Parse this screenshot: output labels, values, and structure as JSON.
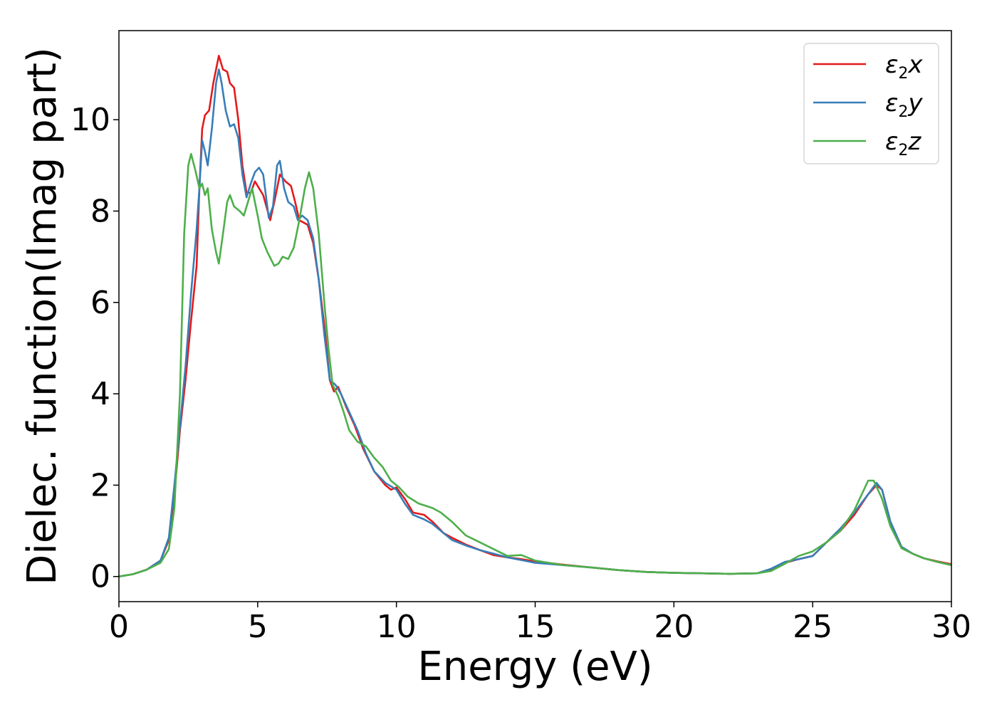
{
  "chart_data": {
    "type": "line",
    "xlabel": "Energy (eV)",
    "ylabel": "Dielec. function(Imag part)",
    "xlim": [
      0,
      30
    ],
    "ylim": [
      -0.55,
      11.95
    ],
    "x_ticks": [
      0,
      5,
      10,
      15,
      20,
      25,
      30
    ],
    "y_ticks": [
      0,
      2,
      4,
      6,
      8,
      10
    ],
    "grid": false,
    "legend_position": "top-right",
    "series": [
      {
        "name": "ε2x",
        "legend_base": "ε",
        "legend_sub": "2",
        "legend_var": "x",
        "color": "#e41a1c",
        "points": [
          [
            0,
            0
          ],
          [
            0.5,
            0.05
          ],
          [
            1,
            0.15
          ],
          [
            1.5,
            0.35
          ],
          [
            1.8,
            0.8
          ],
          [
            2,
            1.8
          ],
          [
            2.2,
            3.2
          ],
          [
            2.4,
            4.3
          ],
          [
            2.6,
            5.6
          ],
          [
            2.8,
            6.8
          ],
          [
            2.9,
            8.5
          ],
          [
            3,
            9.8
          ],
          [
            3.1,
            10.1
          ],
          [
            3.25,
            10.2
          ],
          [
            3.4,
            10.8
          ],
          [
            3.6,
            11.4
          ],
          [
            3.75,
            11.1
          ],
          [
            3.9,
            11.05
          ],
          [
            4,
            10.8
          ],
          [
            4.15,
            10.7
          ],
          [
            4.3,
            10.0
          ],
          [
            4.45,
            9.0
          ],
          [
            4.6,
            8.4
          ],
          [
            4.75,
            8.4
          ],
          [
            4.9,
            8.65
          ],
          [
            5.05,
            8.5
          ],
          [
            5.2,
            8.35
          ],
          [
            5.45,
            7.8
          ],
          [
            5.6,
            8.2
          ],
          [
            5.8,
            8.8
          ],
          [
            6,
            8.65
          ],
          [
            6.2,
            8.55
          ],
          [
            6.35,
            8.2
          ],
          [
            6.5,
            7.8
          ],
          [
            6.8,
            7.7
          ],
          [
            7,
            7.3
          ],
          [
            7.2,
            6.5
          ],
          [
            7.4,
            5.5
          ],
          [
            7.6,
            4.3
          ],
          [
            7.75,
            4.05
          ],
          [
            7.9,
            4.15
          ],
          [
            8.2,
            3.7
          ],
          [
            8.5,
            3.3
          ],
          [
            8.8,
            2.8
          ],
          [
            9.2,
            2.3
          ],
          [
            9.6,
            2.0
          ],
          [
            9.8,
            1.9
          ],
          [
            10,
            1.95
          ],
          [
            10.3,
            1.7
          ],
          [
            10.6,
            1.4
          ],
          [
            11,
            1.35
          ],
          [
            11.3,
            1.2
          ],
          [
            11.7,
            0.95
          ],
          [
            12,
            0.85
          ],
          [
            12.5,
            0.7
          ],
          [
            13,
            0.58
          ],
          [
            13.5,
            0.47
          ],
          [
            14,
            0.42
          ],
          [
            14.5,
            0.38
          ],
          [
            15,
            0.33
          ],
          [
            16,
            0.26
          ],
          [
            17,
            0.2
          ],
          [
            18,
            0.14
          ],
          [
            19,
            0.1
          ],
          [
            20,
            0.08
          ],
          [
            21,
            0.07
          ],
          [
            22,
            0.06
          ],
          [
            23,
            0.07
          ],
          [
            23.5,
            0.15
          ],
          [
            24,
            0.3
          ],
          [
            24.5,
            0.38
          ],
          [
            25,
            0.45
          ],
          [
            25.5,
            0.75
          ],
          [
            26,
            1.0
          ],
          [
            26.5,
            1.35
          ],
          [
            27,
            1.8
          ],
          [
            27.3,
            2.0
          ],
          [
            27.5,
            1.9
          ],
          [
            27.8,
            1.2
          ],
          [
            28.2,
            0.65
          ],
          [
            28.6,
            0.5
          ],
          [
            29,
            0.4
          ],
          [
            29.5,
            0.33
          ],
          [
            30,
            0.27
          ]
        ]
      },
      {
        "name": "ε2y",
        "legend_base": "ε",
        "legend_sub": "2",
        "legend_var": "y",
        "color": "#377eb8",
        "points": [
          [
            0,
            0
          ],
          [
            0.5,
            0.05
          ],
          [
            1,
            0.15
          ],
          [
            1.5,
            0.35
          ],
          [
            1.8,
            0.85
          ],
          [
            2,
            2.0
          ],
          [
            2.2,
            3.3
          ],
          [
            2.4,
            4.6
          ],
          [
            2.6,
            6.2
          ],
          [
            2.8,
            7.6
          ],
          [
            2.9,
            8.5
          ],
          [
            3,
            9.55
          ],
          [
            3.1,
            9.3
          ],
          [
            3.2,
            9.0
          ],
          [
            3.35,
            9.8
          ],
          [
            3.5,
            10.8
          ],
          [
            3.6,
            11.1
          ],
          [
            3.7,
            10.8
          ],
          [
            3.85,
            10.2
          ],
          [
            4,
            9.85
          ],
          [
            4.15,
            9.9
          ],
          [
            4.3,
            9.6
          ],
          [
            4.45,
            8.8
          ],
          [
            4.6,
            8.3
          ],
          [
            4.75,
            8.6
          ],
          [
            4.9,
            8.85
          ],
          [
            5.05,
            8.95
          ],
          [
            5.2,
            8.8
          ],
          [
            5.4,
            7.85
          ],
          [
            5.55,
            8.1
          ],
          [
            5.7,
            9.0
          ],
          [
            5.8,
            9.1
          ],
          [
            5.95,
            8.5
          ],
          [
            6.1,
            8.2
          ],
          [
            6.3,
            8.1
          ],
          [
            6.45,
            7.8
          ],
          [
            6.6,
            7.9
          ],
          [
            6.8,
            7.8
          ],
          [
            7,
            7.4
          ],
          [
            7.2,
            6.5
          ],
          [
            7.4,
            5.3
          ],
          [
            7.6,
            4.3
          ],
          [
            7.8,
            4.2
          ],
          [
            8,
            4.0
          ],
          [
            8.3,
            3.6
          ],
          [
            8.6,
            3.2
          ],
          [
            8.9,
            2.7
          ],
          [
            9.2,
            2.3
          ],
          [
            9.6,
            2.05
          ],
          [
            10,
            1.9
          ],
          [
            10.3,
            1.6
          ],
          [
            10.6,
            1.35
          ],
          [
            11,
            1.25
          ],
          [
            11.3,
            1.15
          ],
          [
            11.7,
            0.95
          ],
          [
            12,
            0.8
          ],
          [
            12.5,
            0.68
          ],
          [
            13,
            0.58
          ],
          [
            13.5,
            0.5
          ],
          [
            14,
            0.42
          ],
          [
            14.5,
            0.36
          ],
          [
            15,
            0.3
          ],
          [
            16,
            0.25
          ],
          [
            17,
            0.2
          ],
          [
            18,
            0.14
          ],
          [
            19,
            0.1
          ],
          [
            20,
            0.08
          ],
          [
            21,
            0.07
          ],
          [
            22,
            0.06
          ],
          [
            23,
            0.07
          ],
          [
            23.5,
            0.17
          ],
          [
            24,
            0.32
          ],
          [
            24.5,
            0.38
          ],
          [
            25,
            0.45
          ],
          [
            25.5,
            0.75
          ],
          [
            26,
            1.05
          ],
          [
            26.5,
            1.4
          ],
          [
            27,
            1.8
          ],
          [
            27.3,
            2.05
          ],
          [
            27.5,
            1.9
          ],
          [
            27.8,
            1.2
          ],
          [
            28.2,
            0.65
          ],
          [
            28.6,
            0.5
          ],
          [
            29,
            0.4
          ],
          [
            29.5,
            0.32
          ],
          [
            30,
            0.25
          ]
        ]
      },
      {
        "name": "ε2z",
        "legend_base": "ε",
        "legend_sub": "2",
        "legend_var": "z",
        "color": "#4daf4a",
        "points": [
          [
            0,
            0
          ],
          [
            0.5,
            0.05
          ],
          [
            1,
            0.15
          ],
          [
            1.5,
            0.3
          ],
          [
            1.8,
            0.6
          ],
          [
            2,
            1.5
          ],
          [
            2.2,
            4.0
          ],
          [
            2.35,
            7.5
          ],
          [
            2.5,
            9.0
          ],
          [
            2.6,
            9.25
          ],
          [
            2.75,
            8.9
          ],
          [
            2.9,
            8.5
          ],
          [
            3,
            8.6
          ],
          [
            3.1,
            8.35
          ],
          [
            3.2,
            8.5
          ],
          [
            3.35,
            7.6
          ],
          [
            3.5,
            7.1
          ],
          [
            3.6,
            6.85
          ],
          [
            3.75,
            7.5
          ],
          [
            3.9,
            8.2
          ],
          [
            4,
            8.35
          ],
          [
            4.15,
            8.1
          ],
          [
            4.35,
            8.0
          ],
          [
            4.5,
            7.9
          ],
          [
            4.65,
            8.2
          ],
          [
            4.8,
            8.5
          ],
          [
            5,
            7.9
          ],
          [
            5.15,
            7.4
          ],
          [
            5.35,
            7.1
          ],
          [
            5.6,
            6.8
          ],
          [
            5.75,
            6.85
          ],
          [
            5.9,
            7.0
          ],
          [
            6.1,
            6.95
          ],
          [
            6.3,
            7.2
          ],
          [
            6.5,
            7.8
          ],
          [
            6.7,
            8.5
          ],
          [
            6.85,
            8.85
          ],
          [
            7,
            8.5
          ],
          [
            7.2,
            7.5
          ],
          [
            7.4,
            6.0
          ],
          [
            7.55,
            5.0
          ],
          [
            7.7,
            4.2
          ],
          [
            7.9,
            3.95
          ],
          [
            8.1,
            3.6
          ],
          [
            8.3,
            3.2
          ],
          [
            8.6,
            2.95
          ],
          [
            8.9,
            2.85
          ],
          [
            9.2,
            2.6
          ],
          [
            9.5,
            2.4
          ],
          [
            9.8,
            2.1
          ],
          [
            10.1,
            1.95
          ],
          [
            10.4,
            1.75
          ],
          [
            10.8,
            1.6
          ],
          [
            11.3,
            1.5
          ],
          [
            11.6,
            1.4
          ],
          [
            12,
            1.2
          ],
          [
            12.5,
            0.9
          ],
          [
            13,
            0.75
          ],
          [
            13.5,
            0.6
          ],
          [
            14,
            0.45
          ],
          [
            14.5,
            0.47
          ],
          [
            15,
            0.35
          ],
          [
            16,
            0.25
          ],
          [
            17,
            0.2
          ],
          [
            18,
            0.14
          ],
          [
            19,
            0.1
          ],
          [
            20,
            0.08
          ],
          [
            21,
            0.07
          ],
          [
            22,
            0.06
          ],
          [
            23,
            0.07
          ],
          [
            23.5,
            0.12
          ],
          [
            24,
            0.28
          ],
          [
            24.5,
            0.45
          ],
          [
            25,
            0.55
          ],
          [
            25.5,
            0.75
          ],
          [
            26,
            1.0
          ],
          [
            26.5,
            1.45
          ],
          [
            27,
            2.1
          ],
          [
            27.2,
            2.1
          ],
          [
            27.5,
            1.7
          ],
          [
            27.8,
            1.1
          ],
          [
            28.2,
            0.62
          ],
          [
            28.6,
            0.5
          ],
          [
            29,
            0.4
          ],
          [
            29.5,
            0.32
          ],
          [
            30,
            0.25
          ]
        ]
      }
    ]
  }
}
